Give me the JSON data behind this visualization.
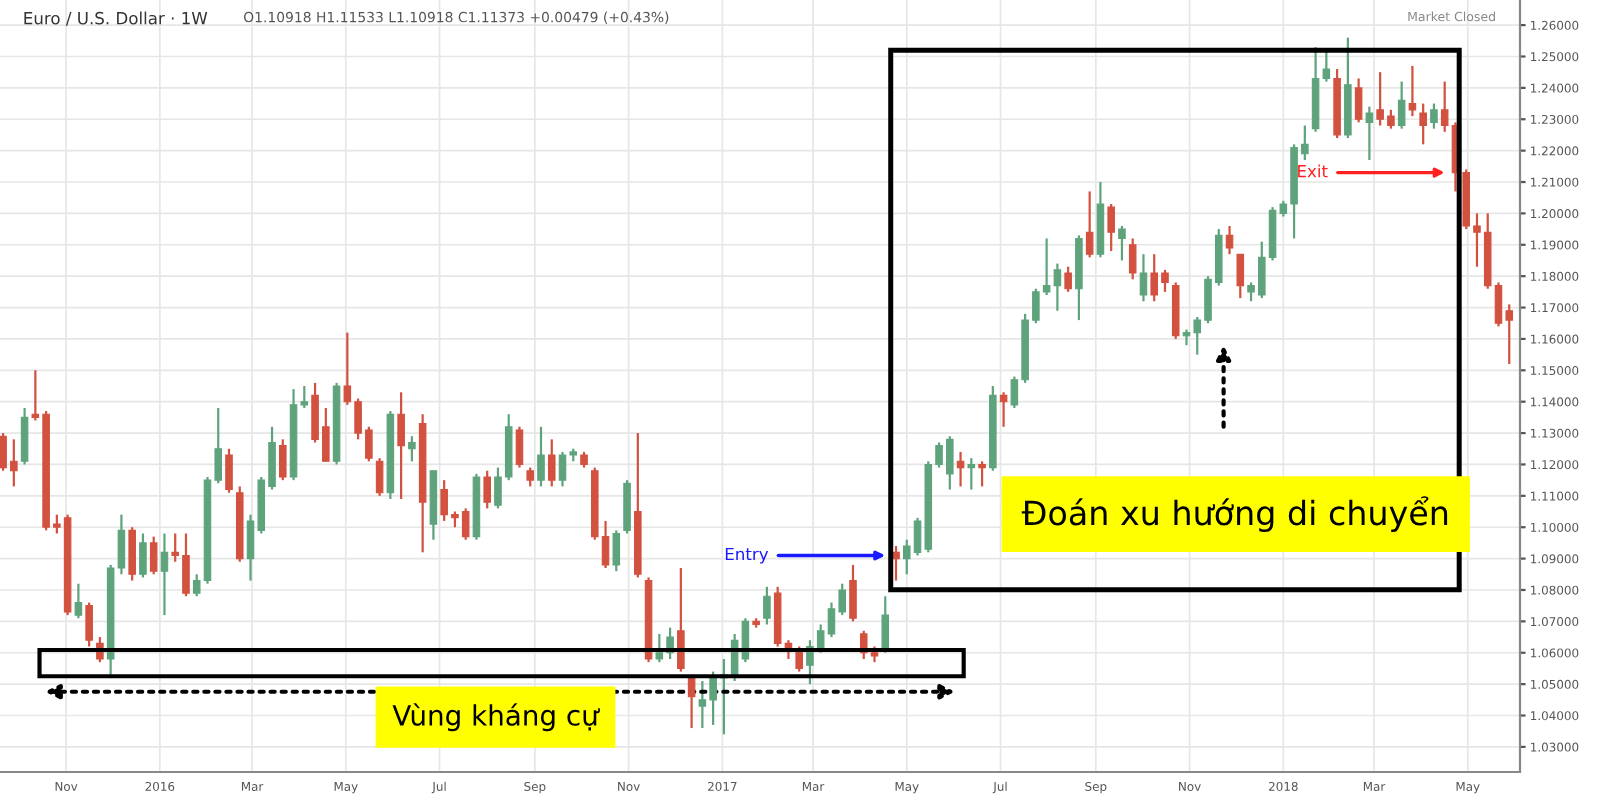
{
  "chart_data": {
    "type": "candlestick",
    "title": "Euro / U.S. Dollar · 1W",
    "subtitle": "O1.10918 H1.11533 L1.10918 C1.11373 +0.00479 (+0.43%)",
    "x": [
      "2015-09-21",
      "2015-09-28",
      "2015-10-05",
      "2015-10-12",
      "2015-10-19",
      "2015-10-26",
      "2015-11-02",
      "2015-11-09",
      "2015-11-16",
      "2015-11-23",
      "2015-11-30",
      "2015-12-07",
      "2015-12-14",
      "2015-12-21",
      "2015-12-28",
      "2016-01-04",
      "2016-01-11",
      "2016-01-18",
      "2016-01-25",
      "2016-02-01",
      "2016-02-08",
      "2016-02-15",
      "2016-02-22",
      "2016-02-29",
      "2016-03-07",
      "2016-03-14",
      "2016-03-21",
      "2016-03-28",
      "2016-04-04",
      "2016-04-11",
      "2016-04-18",
      "2016-04-25",
      "2016-05-02",
      "2016-05-09",
      "2016-05-16",
      "2016-05-23",
      "2016-05-30",
      "2016-06-06",
      "2016-06-13",
      "2016-06-20",
      "2016-06-27",
      "2016-07-04",
      "2016-07-11",
      "2016-07-18",
      "2016-07-25",
      "2016-08-01",
      "2016-08-08",
      "2016-08-15",
      "2016-08-22",
      "2016-08-29",
      "2016-09-05",
      "2016-09-12",
      "2016-09-19",
      "2016-09-26",
      "2016-10-03",
      "2016-10-10",
      "2016-10-17",
      "2016-10-24",
      "2016-10-31",
      "2016-11-07",
      "2016-11-14",
      "2016-11-21",
      "2016-11-28",
      "2016-12-05",
      "2016-12-12",
      "2016-12-19",
      "2016-12-26",
      "2017-01-02",
      "2017-01-09",
      "2017-01-16",
      "2017-01-23",
      "2017-01-30",
      "2017-02-06",
      "2017-02-13",
      "2017-02-20",
      "2017-02-27",
      "2017-03-06",
      "2017-03-13",
      "2017-03-20",
      "2017-03-27",
      "2017-04-03",
      "2017-04-10",
      "2017-04-17",
      "2017-04-24",
      "2017-05-01",
      "2017-05-08",
      "2017-05-15",
      "2017-05-22",
      "2017-05-29",
      "2017-06-05",
      "2017-06-12",
      "2017-06-19",
      "2017-06-26",
      "2017-07-03",
      "2017-07-10",
      "2017-07-17",
      "2017-07-24",
      "2017-07-31",
      "2017-08-07",
      "2017-08-14",
      "2017-08-21",
      "2017-08-28",
      "2017-09-04",
      "2017-09-11",
      "2017-09-18",
      "2017-09-25",
      "2017-10-02",
      "2017-10-09",
      "2017-10-16",
      "2017-10-23",
      "2017-10-30",
      "2017-11-06",
      "2017-11-13",
      "2017-11-20",
      "2017-11-27",
      "2017-12-04",
      "2017-12-11",
      "2017-12-18",
      "2017-12-25",
      "2018-01-01",
      "2018-01-08",
      "2018-01-15",
      "2018-01-22",
      "2018-01-29",
      "2018-02-05",
      "2018-02-12",
      "2018-02-19",
      "2018-02-26",
      "2018-03-05",
      "2018-03-12",
      "2018-03-19",
      "2018-03-26",
      "2018-04-02",
      "2018-04-09",
      "2018-04-16",
      "2018-04-23",
      "2018-04-30",
      "2018-05-07",
      "2018-05-14",
      "2018-05-21",
      "2018-05-28"
    ],
    "ohlc": [
      [
        1.129,
        1.13,
        1.118,
        1.119
      ],
      [
        1.121,
        1.128,
        1.113,
        1.118
      ],
      [
        1.121,
        1.138,
        1.12,
        1.135
      ],
      [
        1.136,
        1.15,
        1.134,
        1.135
      ],
      [
        1.136,
        1.137,
        1.099,
        1.1
      ],
      [
        1.101,
        1.104,
        1.098,
        1.1
      ],
      [
        1.103,
        1.104,
        1.072,
        1.073
      ],
      [
        1.072,
        1.082,
        1.071,
        1.076
      ],
      [
        1.075,
        1.076,
        1.062,
        1.064
      ],
      [
        1.063,
        1.065,
        1.057,
        1.058
      ],
      [
        1.058,
        1.088,
        1.053,
        1.087
      ],
      [
        1.087,
        1.104,
        1.085,
        1.099
      ],
      [
        1.099,
        1.1,
        1.083,
        1.085
      ],
      [
        1.085,
        1.098,
        1.084,
        1.095
      ],
      [
        1.095,
        1.097,
        1.085,
        1.086
      ],
      [
        1.086,
        1.098,
        1.072,
        1.092
      ],
      [
        1.092,
        1.098,
        1.089,
        1.091
      ],
      [
        1.091,
        1.098,
        1.078,
        1.079
      ],
      [
        1.079,
        1.085,
        1.078,
        1.083
      ],
      [
        1.083,
        1.116,
        1.082,
        1.115
      ],
      [
        1.115,
        1.138,
        1.114,
        1.125
      ],
      [
        1.123,
        1.125,
        1.111,
        1.112
      ],
      [
        1.111,
        1.113,
        1.089,
        1.09
      ],
      [
        1.09,
        1.104,
        1.083,
        1.102
      ],
      [
        1.099,
        1.116,
        1.098,
        1.115
      ],
      [
        1.113,
        1.132,
        1.112,
        1.127
      ],
      [
        1.126,
        1.128,
        1.115,
        1.116
      ],
      [
        1.116,
        1.144,
        1.115,
        1.139
      ],
      [
        1.139,
        1.145,
        1.138,
        1.14
      ],
      [
        1.142,
        1.146,
        1.127,
        1.128
      ],
      [
        1.132,
        1.138,
        1.121,
        1.121
      ],
      [
        1.121,
        1.146,
        1.12,
        1.145
      ],
      [
        1.145,
        1.162,
        1.139,
        1.14
      ],
      [
        1.14,
        1.141,
        1.128,
        1.13
      ],
      [
        1.131,
        1.132,
        1.121,
        1.122
      ],
      [
        1.121,
        1.122,
        1.11,
        1.111
      ],
      [
        1.111,
        1.137,
        1.109,
        1.136
      ],
      [
        1.136,
        1.143,
        1.109,
        1.126
      ],
      [
        1.125,
        1.129,
        1.121,
        1.127
      ],
      [
        1.133,
        1.136,
        1.092,
        1.108
      ],
      [
        1.101,
        1.118,
        1.096,
        1.118
      ],
      [
        1.112,
        1.115,
        1.102,
        1.104
      ],
      [
        1.104,
        1.105,
        1.1,
        1.103
      ],
      [
        1.105,
        1.106,
        1.096,
        1.097
      ],
      [
        1.097,
        1.117,
        1.096,
        1.116
      ],
      [
        1.116,
        1.118,
        1.106,
        1.108
      ],
      [
        1.107,
        1.119,
        1.106,
        1.116
      ],
      [
        1.116,
        1.136,
        1.115,
        1.132
      ],
      [
        1.131,
        1.132,
        1.119,
        1.12
      ],
      [
        1.118,
        1.119,
        1.113,
        1.115
      ],
      [
        1.115,
        1.132,
        1.113,
        1.123
      ],
      [
        1.123,
        1.128,
        1.113,
        1.115
      ],
      [
        1.115,
        1.124,
        1.113,
        1.123
      ],
      [
        1.123,
        1.125,
        1.121,
        1.124
      ],
      [
        1.123,
        1.124,
        1.119,
        1.12
      ],
      [
        1.118,
        1.119,
        1.096,
        1.097
      ],
      [
        1.097,
        1.102,
        1.087,
        1.088
      ],
      [
        1.088,
        1.099,
        1.086,
        1.098
      ],
      [
        1.099,
        1.115,
        1.098,
        1.114
      ],
      [
        1.105,
        1.13,
        1.084,
        1.085
      ],
      [
        1.083,
        1.084,
        1.057,
        1.058
      ],
      [
        1.058,
        1.066,
        1.057,
        1.06
      ],
      [
        1.06,
        1.068,
        1.058,
        1.065
      ],
      [
        1.067,
        1.087,
        1.054,
        1.055
      ],
      [
        1.052,
        1.053,
        1.036,
        1.046
      ],
      [
        1.043,
        1.051,
        1.036,
        1.045
      ],
      [
        1.045,
        1.054,
        1.037,
        1.052
      ],
      [
        1.052,
        1.058,
        1.034,
        1.053
      ],
      [
        1.053,
        1.066,
        1.051,
        1.064
      ],
      [
        1.058,
        1.071,
        1.057,
        1.07
      ],
      [
        1.07,
        1.071,
        1.068,
        1.069
      ],
      [
        1.071,
        1.081,
        1.069,
        1.078
      ],
      [
        1.079,
        1.081,
        1.062,
        1.063
      ],
      [
        1.063,
        1.064,
        1.058,
        1.061
      ],
      [
        1.061,
        1.062,
        1.054,
        1.055
      ],
      [
        1.056,
        1.064,
        1.05,
        1.062
      ],
      [
        1.061,
        1.069,
        1.06,
        1.067
      ],
      [
        1.066,
        1.076,
        1.065,
        1.074
      ],
      [
        1.073,
        1.082,
        1.072,
        1.08
      ],
      [
        1.083,
        1.088,
        1.07,
        1.071
      ],
      [
        1.066,
        1.067,
        1.058,
        1.06
      ],
      [
        1.06,
        1.062,
        1.057,
        1.059
      ],
      [
        1.061,
        1.078,
        1.06,
        1.072
      ],
      [
        1.092,
        1.094,
        1.083,
        1.09
      ],
      [
        1.09,
        1.096,
        1.085,
        1.094
      ],
      [
        1.092,
        1.103,
        1.091,
        1.102
      ],
      [
        1.093,
        1.121,
        1.092,
        1.12
      ],
      [
        1.12,
        1.127,
        1.119,
        1.126
      ],
      [
        1.117,
        1.129,
        1.112,
        1.128
      ],
      [
        1.121,
        1.124,
        1.113,
        1.119
      ],
      [
        1.119,
        1.122,
        1.112,
        1.12
      ],
      [
        1.12,
        1.121,
        1.113,
        1.119
      ],
      [
        1.119,
        1.145,
        1.118,
        1.142
      ],
      [
        1.142,
        1.143,
        1.132,
        1.14
      ],
      [
        1.139,
        1.148,
        1.138,
        1.147
      ],
      [
        1.147,
        1.168,
        1.146,
        1.166
      ],
      [
        1.166,
        1.176,
        1.165,
        1.175
      ],
      [
        1.175,
        1.192,
        1.174,
        1.177
      ],
      [
        1.177,
        1.184,
        1.169,
        1.182
      ],
      [
        1.181,
        1.183,
        1.175,
        1.176
      ],
      [
        1.176,
        1.193,
        1.166,
        1.192
      ],
      [
        1.194,
        1.207,
        1.186,
        1.187
      ],
      [
        1.187,
        1.21,
        1.186,
        1.203
      ],
      [
        1.202,
        1.203,
        1.188,
        1.194
      ],
      [
        1.192,
        1.196,
        1.185,
        1.195
      ],
      [
        1.19,
        1.192,
        1.179,
        1.181
      ],
      [
        1.174,
        1.187,
        1.172,
        1.181
      ],
      [
        1.181,
        1.187,
        1.172,
        1.174
      ],
      [
        1.181,
        1.182,
        1.175,
        1.178
      ],
      [
        1.177,
        1.178,
        1.16,
        1.161
      ],
      [
        1.161,
        1.163,
        1.158,
        1.162
      ],
      [
        1.162,
        1.167,
        1.155,
        1.166
      ],
      [
        1.166,
        1.18,
        1.165,
        1.179
      ],
      [
        1.178,
        1.195,
        1.177,
        1.193
      ],
      [
        1.193,
        1.196,
        1.187,
        1.189
      ],
      [
        1.187,
        1.187,
        1.173,
        1.177
      ],
      [
        1.175,
        1.178,
        1.172,
        1.177
      ],
      [
        1.174,
        1.191,
        1.173,
        1.186
      ],
      [
        1.186,
        1.202,
        1.185,
        1.201
      ],
      [
        1.2,
        1.204,
        1.199,
        1.203
      ],
      [
        1.203,
        1.222,
        1.192,
        1.221
      ],
      [
        1.219,
        1.228,
        1.217,
        1.222
      ],
      [
        1.227,
        1.253,
        1.226,
        1.243
      ],
      [
        1.243,
        1.252,
        1.242,
        1.246
      ],
      [
        1.243,
        1.246,
        1.224,
        1.225
      ],
      [
        1.225,
        1.256,
        1.224,
        1.241
      ],
      [
        1.24,
        1.243,
        1.229,
        1.23
      ],
      [
        1.229,
        1.234,
        1.217,
        1.232
      ],
      [
        1.233,
        1.245,
        1.228,
        1.23
      ],
      [
        1.231,
        1.233,
        1.227,
        1.228
      ],
      [
        1.228,
        1.242,
        1.227,
        1.236
      ],
      [
        1.235,
        1.247,
        1.231,
        1.233
      ],
      [
        1.232,
        1.235,
        1.222,
        1.228
      ],
      [
        1.229,
        1.235,
        1.227,
        1.233
      ],
      [
        1.233,
        1.242,
        1.226,
        1.228
      ],
      [
        1.228,
        1.229,
        1.207,
        1.213
      ],
      [
        1.213,
        1.214,
        1.195,
        1.196
      ],
      [
        1.196,
        1.2,
        1.183,
        1.194
      ],
      [
        1.194,
        1.2,
        1.176,
        1.177
      ],
      [
        1.177,
        1.178,
        1.164,
        1.165
      ],
      [
        1.169,
        1.171,
        1.152,
        1.166
      ]
    ],
    "xlim": [
      "2015-09-19",
      "2018-06-04"
    ],
    "xticks": [
      {
        "value": "2015-11-01",
        "label": "Nov"
      },
      {
        "value": "2016-01-01",
        "label": "2016"
      },
      {
        "value": "2016-03-01",
        "label": "Mar"
      },
      {
        "value": "2016-05-01",
        "label": "May"
      },
      {
        "value": "2016-07-01",
        "label": "Jul"
      },
      {
        "value": "2016-09-01",
        "label": "Sep"
      },
      {
        "value": "2016-11-01",
        "label": "Nov"
      },
      {
        "value": "2017-01-01",
        "label": "2017"
      },
      {
        "value": "2017-03-01",
        "label": "Mar"
      },
      {
        "value": "2017-05-01",
        "label": "May"
      },
      {
        "value": "2017-07-01",
        "label": "Jul"
      },
      {
        "value": "2017-09-01",
        "label": "Sep"
      },
      {
        "value": "2017-11-01",
        "label": "Nov"
      },
      {
        "value": "2018-01-01",
        "label": "2018"
      },
      {
        "value": "2018-03-01",
        "label": "Mar"
      },
      {
        "value": "2018-05-01",
        "label": "May"
      }
    ],
    "ylim": [
      1.022,
      1.268
    ],
    "yticks": [
      {
        "value": 1.03,
        "label": "1.03000"
      },
      {
        "value": 1.04,
        "label": "1.04000"
      },
      {
        "value": 1.05,
        "label": "1.05000"
      },
      {
        "value": 1.06,
        "label": "1.06000"
      },
      {
        "value": 1.07,
        "label": "1.07000"
      },
      {
        "value": 1.08,
        "label": "1.08000"
      },
      {
        "value": 1.09,
        "label": "1.09000"
      },
      {
        "value": 1.1,
        "label": "1.10000"
      },
      {
        "value": 1.11,
        "label": "1.11000"
      },
      {
        "value": 1.12,
        "label": "1.12000"
      },
      {
        "value": 1.13,
        "label": "1.13000"
      },
      {
        "value": 1.14,
        "label": "1.14000"
      },
      {
        "value": 1.15,
        "label": "1.15000"
      },
      {
        "value": 1.16,
        "label": "1.16000"
      },
      {
        "value": 1.17,
        "label": "1.17000"
      },
      {
        "value": 1.18,
        "label": "1.18000"
      },
      {
        "value": 1.19,
        "label": "1.19000"
      },
      {
        "value": 1.2,
        "label": "1.20000"
      },
      {
        "value": 1.21,
        "label": "1.21000"
      },
      {
        "value": 1.22,
        "label": "1.22000"
      },
      {
        "value": 1.23,
        "label": "1.23000"
      },
      {
        "value": 1.24,
        "label": "1.24000"
      },
      {
        "value": 1.25,
        "label": "1.25000"
      },
      {
        "value": 1.26,
        "label": "1.26000"
      }
    ],
    "grid": true,
    "annotations": [
      {
        "text": "Entry",
        "x": "2017-04-17",
        "y": 1.091
      },
      {
        "text": "Exit",
        "x": "2018-04-16",
        "y": 1.213
      },
      "Đoán xu hướng di chuyển",
      "Vùng kháng cự",
      "Market Closed"
    ]
  }
}
